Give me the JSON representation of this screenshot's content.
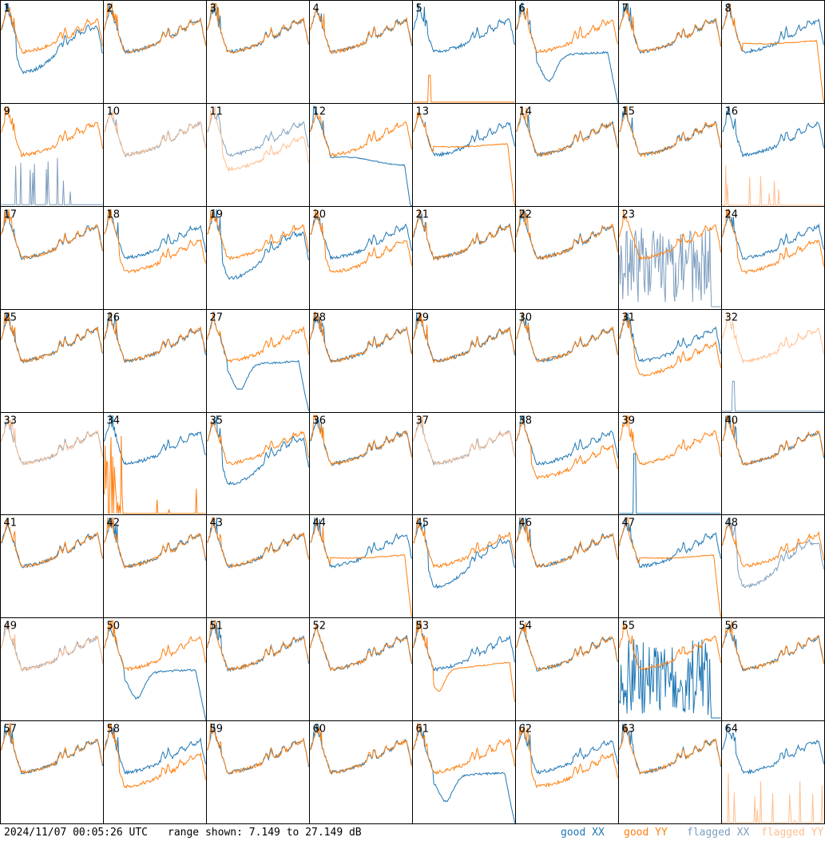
{
  "footer": {
    "timestamp": "2024/11/07 00:05:26 UTC",
    "range_text": "range shown: 7.149 to 27.149 dB"
  },
  "legend": {
    "good_xx": "good XX",
    "good_yy": "good YY",
    "flagged_xx": "flagged XX",
    "flagged_yy": "flagged YY"
  },
  "colors": {
    "good_xx": "#1f77b4",
    "good_yy": "#ff7f0e",
    "flagged_xx": "#7f9fbf",
    "flagged_yy": "#ffbf90"
  },
  "chart_data": {
    "type": "line",
    "grid_layout": "8x8 small multiples",
    "ylim_db": [
      7.149,
      27.149
    ],
    "panels": [
      {
        "id": "1",
        "xx": "good",
        "yy": "good",
        "shape": "xx_low",
        "note": "yy drops at end"
      },
      {
        "id": "2",
        "xx": "good",
        "yy": "good",
        "shape": "normal"
      },
      {
        "id": "3",
        "xx": "good",
        "yy": "good",
        "shape": "normal"
      },
      {
        "id": "4",
        "xx": "good",
        "yy": "good",
        "shape": "normal"
      },
      {
        "id": "5",
        "xx": "good",
        "yy": "good",
        "shape": "yy_dead"
      },
      {
        "id": "6",
        "xx": "good",
        "yy": "good",
        "shape": "xx_dip"
      },
      {
        "id": "7",
        "xx": "good",
        "yy": "good",
        "shape": "normal"
      },
      {
        "id": "8",
        "xx": "good",
        "yy": "good",
        "shape": "yy_drop_end"
      },
      {
        "id": "9",
        "xx": "flagged",
        "yy": "good",
        "shape": "xx_spikes"
      },
      {
        "id": "10",
        "xx": "flagged",
        "yy": "flagged",
        "shape": "normal"
      },
      {
        "id": "11",
        "xx": "flagged",
        "yy": "flagged",
        "shape": "yy_low"
      },
      {
        "id": "12",
        "xx": "good",
        "yy": "good",
        "shape": "xx_drop_end"
      },
      {
        "id": "13",
        "xx": "good",
        "yy": "good",
        "shape": "yy_drop_end"
      },
      {
        "id": "14",
        "xx": "good",
        "yy": "good",
        "shape": "normal"
      },
      {
        "id": "15",
        "xx": "good",
        "yy": "good",
        "shape": "normal"
      },
      {
        "id": "16",
        "xx": "good",
        "yy": "flagged",
        "shape": "yy_spikes"
      },
      {
        "id": "17",
        "xx": "good",
        "yy": "good",
        "shape": "normal"
      },
      {
        "id": "18",
        "xx": "good",
        "yy": "good",
        "shape": "yy_low"
      },
      {
        "id": "19",
        "xx": "good",
        "yy": "good",
        "shape": "xx_low"
      },
      {
        "id": "20",
        "xx": "good",
        "yy": "good",
        "shape": "yy_low"
      },
      {
        "id": "21",
        "xx": "good",
        "yy": "good",
        "shape": "normal"
      },
      {
        "id": "22",
        "xx": "good",
        "yy": "good",
        "shape": "normal"
      },
      {
        "id": "23",
        "xx": "flagged",
        "yy": "good",
        "shape": "xx_noise"
      },
      {
        "id": "24",
        "xx": "good",
        "yy": "good",
        "shape": "yy_low"
      },
      {
        "id": "25",
        "xx": "good",
        "yy": "good",
        "shape": "normal"
      },
      {
        "id": "26",
        "xx": "good",
        "yy": "good",
        "shape": "normal"
      },
      {
        "id": "27",
        "xx": "good",
        "yy": "good",
        "shape": "xx_dip"
      },
      {
        "id": "28",
        "xx": "good",
        "yy": "good",
        "shape": "normal"
      },
      {
        "id": "29",
        "xx": "good",
        "yy": "good",
        "shape": "normal"
      },
      {
        "id": "30",
        "xx": "good",
        "yy": "good",
        "shape": "normal"
      },
      {
        "id": "31",
        "xx": "good",
        "yy": "good",
        "shape": "yy_low"
      },
      {
        "id": "32",
        "xx": "flagged",
        "yy": "flagged",
        "shape": "xx_dead"
      },
      {
        "id": "33",
        "xx": "flagged",
        "yy": "flagged",
        "shape": "normal"
      },
      {
        "id": "34",
        "xx": "good",
        "yy": "good",
        "shape": "yy_dead_spikes"
      },
      {
        "id": "35",
        "xx": "good",
        "yy": "good",
        "shape": "xx_low"
      },
      {
        "id": "36",
        "xx": "good",
        "yy": "good",
        "shape": "normal"
      },
      {
        "id": "37",
        "xx": "flagged",
        "yy": "flagged",
        "shape": "normal"
      },
      {
        "id": "38",
        "xx": "good",
        "yy": "good",
        "shape": "yy_low"
      },
      {
        "id": "39",
        "xx": "good",
        "yy": "good",
        "shape": "xx_dead_spike"
      },
      {
        "id": "40",
        "xx": "good",
        "yy": "good",
        "shape": "normal"
      },
      {
        "id": "41",
        "xx": "good",
        "yy": "good",
        "shape": "normal"
      },
      {
        "id": "42",
        "xx": "good",
        "yy": "good",
        "shape": "normal"
      },
      {
        "id": "43",
        "xx": "good",
        "yy": "good",
        "shape": "normal"
      },
      {
        "id": "44",
        "xx": "good",
        "yy": "good",
        "shape": "yy_drop_end"
      },
      {
        "id": "45",
        "xx": "good",
        "yy": "good",
        "shape": "xx_low"
      },
      {
        "id": "46",
        "xx": "good",
        "yy": "good",
        "shape": "normal"
      },
      {
        "id": "47",
        "xx": "good",
        "yy": "good",
        "shape": "yy_drop_end"
      },
      {
        "id": "48",
        "xx": "flagged",
        "yy": "good",
        "shape": "xx_low"
      },
      {
        "id": "49",
        "xx": "flagged",
        "yy": "flagged",
        "shape": "normal"
      },
      {
        "id": "50",
        "xx": "good",
        "yy": "good",
        "shape": "xx_dip"
      },
      {
        "id": "51",
        "xx": "good",
        "yy": "good",
        "shape": "normal"
      },
      {
        "id": "52",
        "xx": "good",
        "yy": "good",
        "shape": "normal"
      },
      {
        "id": "53",
        "xx": "good",
        "yy": "good",
        "shape": "yy_dip"
      },
      {
        "id": "54",
        "xx": "good",
        "yy": "good",
        "shape": "normal"
      },
      {
        "id": "55",
        "xx": "good",
        "yy": "good",
        "shape": "xx_noise"
      },
      {
        "id": "56",
        "xx": "good",
        "yy": "good",
        "shape": "normal"
      },
      {
        "id": "57",
        "xx": "good",
        "yy": "good",
        "shape": "normal"
      },
      {
        "id": "58",
        "xx": "good",
        "yy": "good",
        "shape": "yy_low"
      },
      {
        "id": "59",
        "xx": "good",
        "yy": "good",
        "shape": "normal"
      },
      {
        "id": "60",
        "xx": "good",
        "yy": "good",
        "shape": "normal"
      },
      {
        "id": "61",
        "xx": "good",
        "yy": "good",
        "shape": "xx_dip"
      },
      {
        "id": "62",
        "xx": "good",
        "yy": "good",
        "shape": "yy_low"
      },
      {
        "id": "63",
        "xx": "good",
        "yy": "good",
        "shape": "normal"
      },
      {
        "id": "64",
        "xx": "good",
        "yy": "flagged",
        "shape": "yy_spikes"
      }
    ]
  }
}
